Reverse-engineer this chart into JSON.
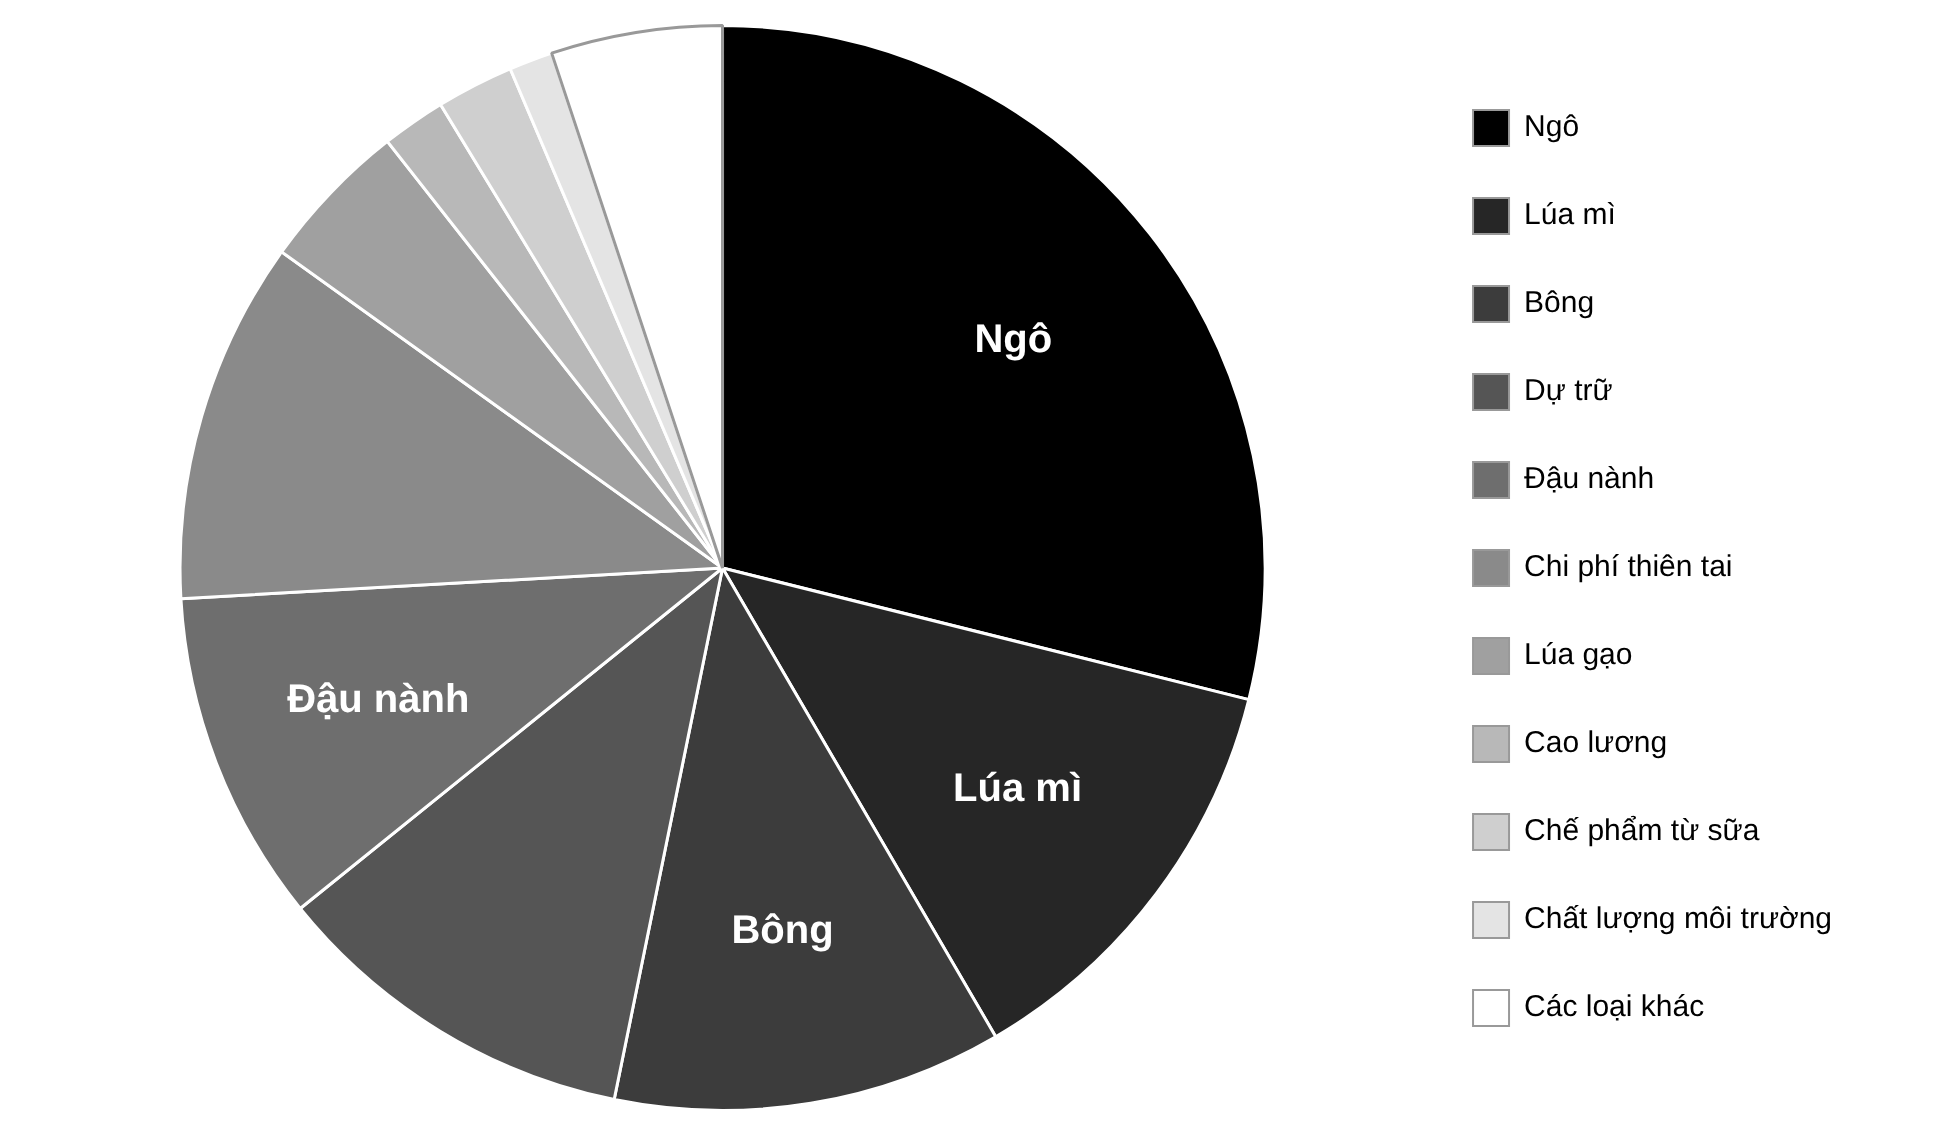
{
  "chart_data": {
    "type": "pie",
    "categories": [
      "Ngô",
      "Lúa mì",
      "Bông",
      "Dự trữ",
      "Đậu nành",
      "Chi phí thiên tai",
      "Lúa gạo",
      "Cao lương",
      "Chế phẩm từ sữa",
      "Chất lượng môi trường",
      "Các loại khác"
    ],
    "values": [
      28.9,
      12.7,
      11.6,
      11.0,
      9.9,
      10.8,
      4.5,
      1.9,
      2.3,
      1.3,
      5.1
    ],
    "colors": [
      "#000000",
      "#262626",
      "#3c3c3c",
      "#555555",
      "#6e6e6e",
      "#8a8a8a",
      "#a0a0a0",
      "#b8b8b8",
      "#cfcfcf",
      "#e4e4e4",
      "#ffffff"
    ],
    "value_labels": [
      "Ngô",
      "Lúa mì",
      "Bông",
      null,
      "Đậu nành",
      null,
      null,
      null,
      null,
      null,
      null
    ],
    "legend": "right"
  }
}
